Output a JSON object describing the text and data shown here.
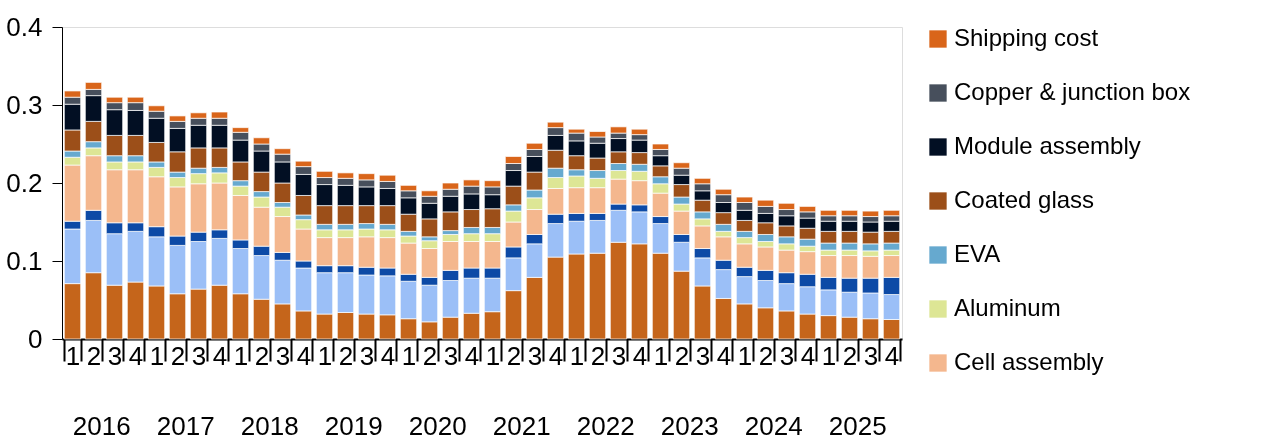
{
  "chart_data": {
    "type": "bar",
    "stacked": true,
    "categories": [
      "1",
      "2",
      "3",
      "4",
      "1",
      "2",
      "3",
      "4",
      "1",
      "2",
      "3",
      "4",
      "1",
      "2",
      "3",
      "4",
      "1",
      "2",
      "3",
      "4",
      "1",
      "2",
      "3",
      "4",
      "1",
      "2",
      "3",
      "4",
      "1",
      "2",
      "3",
      "4",
      "1",
      "2",
      "3",
      "4",
      "1",
      "2",
      "3",
      "4"
    ],
    "annotations": [
      "2016",
      "2017",
      "2018",
      "2019",
      "2020",
      "2021",
      "2022",
      "2023",
      "2024",
      "2025"
    ],
    "series": [
      {
        "color": "#c5651b",
        "values": [
          0.071,
          0.085,
          0.069,
          0.073,
          0.068,
          0.058,
          0.064,
          0.069,
          0.058,
          0.051,
          0.045,
          0.036,
          0.032,
          0.034,
          0.032,
          0.031,
          0.026,
          0.022,
          0.028,
          0.033,
          0.035,
          0.062,
          0.079,
          0.105,
          0.109,
          0.11,
          0.124,
          0.122,
          0.11,
          0.087,
          0.068,
          0.052,
          0.045,
          0.04,
          0.036,
          0.032,
          0.03,
          0.028,
          0.026,
          0.025
        ]
      },
      {
        "color": "#9bbff7",
        "values": [
          0.07,
          0.067,
          0.066,
          0.065,
          0.063,
          0.062,
          0.061,
          0.06,
          0.058,
          0.056,
          0.056,
          0.055,
          0.053,
          0.051,
          0.05,
          0.05,
          0.048,
          0.047,
          0.047,
          0.045,
          0.043,
          0.042,
          0.043,
          0.043,
          0.042,
          0.042,
          0.041,
          0.041,
          0.038,
          0.037,
          0.036,
          0.037,
          0.035,
          0.035,
          0.035,
          0.035,
          0.033,
          0.032,
          0.033,
          0.032
        ]
      },
      {
        "color": "#0d4aa6",
        "values": [
          0.01,
          0.013,
          0.014,
          0.011,
          0.013,
          0.012,
          0.012,
          0.011,
          0.011,
          0.012,
          0.01,
          0.009,
          0.009,
          0.009,
          0.01,
          0.01,
          0.009,
          0.01,
          0.013,
          0.013,
          0.013,
          0.014,
          0.012,
          0.012,
          0.01,
          0.009,
          0.008,
          0.009,
          0.009,
          0.01,
          0.012,
          0.012,
          0.012,
          0.013,
          0.014,
          0.016,
          0.016,
          0.018,
          0.019,
          0.022
        ]
      },
      {
        "name": "Cell assembly",
        "color": "#f4b78e",
        "values": [
          0.072,
          0.07,
          0.068,
          0.068,
          0.064,
          0.063,
          0.062,
          0.06,
          0.057,
          0.05,
          0.046,
          0.041,
          0.036,
          0.036,
          0.039,
          0.039,
          0.04,
          0.037,
          0.037,
          0.034,
          0.034,
          0.032,
          0.032,
          0.033,
          0.033,
          0.033,
          0.032,
          0.031,
          0.03,
          0.03,
          0.029,
          0.03,
          0.03,
          0.03,
          0.029,
          0.029,
          0.028,
          0.029,
          0.028,
          0.028
        ]
      },
      {
        "name": "Aluminum",
        "color": "#dde695",
        "values": [
          0.01,
          0.01,
          0.01,
          0.01,
          0.012,
          0.012,
          0.013,
          0.013,
          0.012,
          0.013,
          0.012,
          0.012,
          0.01,
          0.01,
          0.01,
          0.01,
          0.009,
          0.01,
          0.009,
          0.01,
          0.01,
          0.014,
          0.015,
          0.014,
          0.015,
          0.012,
          0.011,
          0.012,
          0.012,
          0.009,
          0.009,
          0.007,
          0.008,
          0.007,
          0.008,
          0.007,
          0.007,
          0.007,
          0.007,
          0.007
        ]
      },
      {
        "name": "EVA",
        "color": "#66a9cf",
        "values": [
          0.008,
          0.008,
          0.008,
          0.008,
          0.007,
          0.007,
          0.007,
          0.007,
          0.007,
          0.007,
          0.006,
          0.006,
          0.007,
          0.007,
          0.007,
          0.007,
          0.006,
          0.005,
          0.005,
          0.008,
          0.008,
          0.008,
          0.01,
          0.012,
          0.008,
          0.01,
          0.009,
          0.009,
          0.009,
          0.009,
          0.009,
          0.009,
          0.008,
          0.009,
          0.009,
          0.009,
          0.009,
          0.009,
          0.009,
          0.009
        ]
      },
      {
        "name": "Coated glass",
        "color": "#9c4f19",
        "values": [
          0.027,
          0.026,
          0.026,
          0.026,
          0.025,
          0.026,
          0.026,
          0.025,
          0.024,
          0.025,
          0.025,
          0.025,
          0.024,
          0.024,
          0.023,
          0.024,
          0.022,
          0.023,
          0.024,
          0.023,
          0.024,
          0.024,
          0.023,
          0.023,
          0.018,
          0.016,
          0.015,
          0.015,
          0.014,
          0.016,
          0.015,
          0.015,
          0.014,
          0.015,
          0.014,
          0.014,
          0.015,
          0.015,
          0.015,
          0.015
        ]
      },
      {
        "name": "Module assembly",
        "color": "#020f23",
        "values": [
          0.033,
          0.033,
          0.033,
          0.032,
          0.031,
          0.03,
          0.029,
          0.029,
          0.028,
          0.027,
          0.027,
          0.027,
          0.027,
          0.026,
          0.024,
          0.022,
          0.021,
          0.02,
          0.02,
          0.02,
          0.018,
          0.02,
          0.02,
          0.019,
          0.019,
          0.019,
          0.017,
          0.016,
          0.013,
          0.012,
          0.012,
          0.013,
          0.013,
          0.012,
          0.013,
          0.013,
          0.013,
          0.013,
          0.013,
          0.013
        ]
      },
      {
        "name": "Copper & junction box",
        "color": "#474f5c",
        "values": [
          0.009,
          0.008,
          0.009,
          0.01,
          0.009,
          0.009,
          0.009,
          0.009,
          0.01,
          0.009,
          0.01,
          0.01,
          0.009,
          0.009,
          0.009,
          0.009,
          0.009,
          0.009,
          0.009,
          0.01,
          0.01,
          0.009,
          0.009,
          0.01,
          0.01,
          0.008,
          0.007,
          0.007,
          0.008,
          0.009,
          0.009,
          0.01,
          0.01,
          0.009,
          0.008,
          0.008,
          0.007,
          0.007,
          0.007,
          0.007
        ]
      },
      {
        "name": "Shipping cost",
        "color": "#d9651a",
        "values": [
          0.008,
          0.009,
          0.007,
          0.007,
          0.007,
          0.007,
          0.007,
          0.008,
          0.006,
          0.008,
          0.007,
          0.007,
          0.008,
          0.007,
          0.008,
          0.008,
          0.007,
          0.007,
          0.008,
          0.008,
          0.008,
          0.009,
          0.008,
          0.007,
          0.005,
          0.007,
          0.008,
          0.007,
          0.007,
          0.007,
          0.007,
          0.007,
          0.007,
          0.008,
          0.008,
          0.007,
          0.007,
          0.007,
          0.007,
          0.007
        ]
      }
    ],
    "ylim": [
      0,
      0.4
    ],
    "yticks": [
      0,
      0.1,
      0.2,
      0.3,
      0.4
    ],
    "grid": false,
    "legend": "right"
  }
}
